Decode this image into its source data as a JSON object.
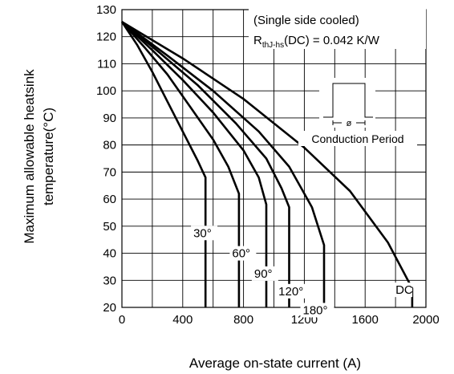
{
  "chart_data": {
    "type": "line",
    "xlabel": "Average on-state current (A)",
    "ylabel_line1": "Maximum allowable heatsink",
    "ylabel_line2": "temperature(°C)",
    "xlim": [
      0,
      2000
    ],
    "ylim": [
      20,
      130
    ],
    "x_ticks": [
      "0",
      "400",
      "800",
      "1200",
      "1600",
      "2000"
    ],
    "y_ticks": [
      "20",
      "30",
      "40",
      "50",
      "60",
      "70",
      "80",
      "90",
      "100",
      "110",
      "120",
      "130"
    ],
    "grid": true,
    "annotation": {
      "line1": "(Single side cooled)",
      "rth_prefix": "R",
      "rth_sub": "thJ-hs",
      "rth_suffix": "(DC) = 0.042 K/W",
      "period_label": "Conduction Period",
      "phi_symbol": "ø"
    },
    "series": [
      {
        "name": "30°",
        "x": [
          0,
          100,
          200,
          300,
          400,
          500,
          550,
          550
        ],
        "y": [
          125.5,
          117,
          107,
          96,
          85,
          74,
          68,
          20
        ]
      },
      {
        "name": "60°",
        "x": [
          0,
          150,
          300,
          450,
          600,
          700,
          770,
          770
        ],
        "y": [
          125.5,
          116,
          106,
          94,
          82,
          72,
          62,
          20
        ]
      },
      {
        "name": "90°",
        "x": [
          0,
          200,
          400,
          600,
          800,
          900,
          950,
          950
        ],
        "y": [
          125.5,
          115,
          104,
          92,
          78,
          68,
          58,
          20
        ]
      },
      {
        "name": "120°",
        "x": [
          0,
          250,
          500,
          750,
          950,
          1050,
          1100,
          1100
        ],
        "y": [
          125.5,
          114,
          102,
          88,
          75,
          64,
          57,
          20
        ]
      },
      {
        "name": "180°",
        "x": [
          0,
          300,
          600,
          900,
          1100,
          1250,
          1330,
          1330
        ],
        "y": [
          125.5,
          113,
          100,
          85,
          72,
          57,
          43,
          20
        ]
      },
      {
        "name": "DC",
        "x": [
          0,
          400,
          800,
          1200,
          1500,
          1750,
          1910,
          1910
        ],
        "y": [
          125.5,
          112,
          97,
          79,
          63,
          44,
          27,
          20
        ]
      }
    ],
    "series_labels": [
      "30°",
      "60°",
      "90°",
      "120°",
      "180°",
      "DC"
    ]
  }
}
